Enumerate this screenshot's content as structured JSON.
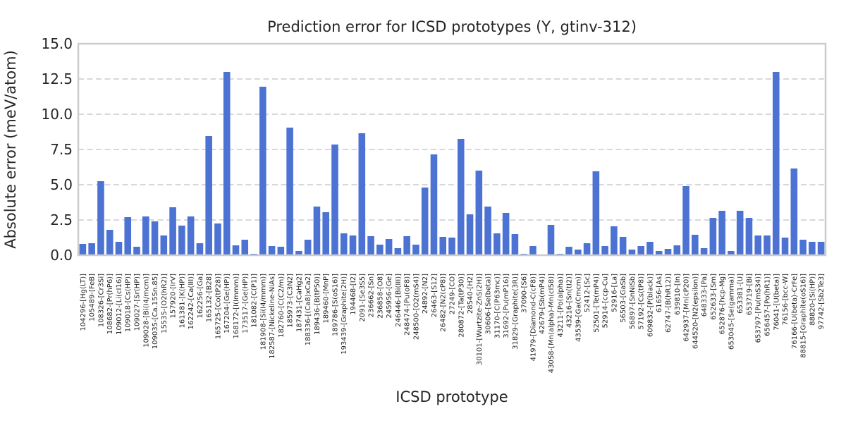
{
  "chart_data": {
    "type": "bar",
    "title": "Prediction error for ICSD prototypes (Y, gtinv-312)",
    "xlabel": "ICSD prototype",
    "ylabel": "Absolute error (meV/atom)",
    "ylim": [
      0,
      15
    ],
    "yticks": [
      "0.0",
      "2.5",
      "5.0",
      "7.5",
      "10.0",
      "12.5",
      "15.0"
    ],
    "grid": true,
    "bar_color": "#4c72d4",
    "categories": [
      "104296-[Hg(LT)]",
      "105489-[FeB]",
      "108326-[Cr3Si]",
      "108682-[Pr(hP6)]",
      "109012-[Li(cI16)]",
      "109018-[Cs(HP)]",
      "109027-[Sr(HP)]",
      "109028-[Bi(I4/mcm)]",
      "109035-[Ca.15Sn.85]",
      "15535-[O2(hR2)]",
      "157920-[IrV]",
      "161381-[K(HP)]",
      "162242-[Ca(III)]",
      "162256-[Ga]",
      "165132-[B28]",
      "165725-[Co(tP28)]",
      "167204-[Ge(HP)]",
      "168172-[I(Immm)]",
      "173517-[Ge(HP)]",
      "181082-[C(P1)]",
      "181908-[Si(I4/mmm)]",
      "182587-[Nickeline-NiAs]",
      "182760-[C(C2/m)]",
      "185973-[C3N2]",
      "187431-[CaHg2]",
      "188336-[(Ca8)xCa2]",
      "189436-[B(tP50)]",
      "189460-[MnP]",
      "189786-[S(oS16)]",
      "193439-[Graphite(2H)]",
      "194468-[I2]",
      "2091-[Se3S5]",
      "236662-[Sn]",
      "236858-[O8]",
      "245956-[Ge]",
      "246446-[Bi(III)]",
      "248474-[Pu(oF8)]",
      "248500-[O2(mS4)]",
      "24892-[N2]",
      "26463-[S12]",
      "26482-[N2(cP8)]",
      "27249-[CO]",
      "280872-[Ta(tP30)]",
      "28540-[H2]",
      "30101-[Wurtzite-ZnS(2H)]",
      "30606-[Se(beta)]",
      "31170-[C(P63mc)]",
      "31692-[Pu(mP16)]",
      "31829-[Graphite(3R)]",
      "37090-[S6]",
      "41979-[Diamond-C(cF8)]",
      "42679-[Sb(mP4)]",
      "43058-[Mn(alpha)-Mn(cI58)]",
      "43211-[Po(alpha)]",
      "43216-[Sn(tI2)]",
      "43539-[Ga(Cmcm)]",
      "52412-[Sc]",
      "52501-[Te(mP4)]",
      "52914-[ccp-Cu]",
      "52916-[La]",
      "56503-[GaSb]",
      "56897-[SnNiSb]",
      "57192-[Cs(tP8)]",
      "609832-[P(black)]",
      "61656-[As]",
      "62747-[B(hR12)]",
      "639810-[In]",
      "642937-[Mn(cP20)]",
      "644520-[N2(epsilon)]",
      "648333-[Pa]",
      "652633-[Sm]",
      "652876-[hcp-Mg]",
      "653045-[Se(gamma)]",
      "653381-[U]",
      "653719-[Bi]",
      "653797-[Pu(mS34)]",
      "656457-[Po(hR1)]",
      "76041-[U(beta)]",
      "76156-[bcc-W]",
      "76166-[U(beta)-CrFe]",
      "88815-[Graphite(oS16)]",
      "88820-[Si(HP)]",
      "97742-[Sb2Te3]"
    ],
    "values": [
      0.8,
      0.85,
      5.25,
      1.8,
      0.95,
      2.7,
      0.6,
      2.75,
      2.4,
      1.4,
      3.4,
      2.1,
      2.75,
      0.85,
      8.45,
      2.25,
      13.0,
      0.7,
      1.1,
      0.1,
      11.95,
      0.65,
      0.6,
      9.05,
      0.3,
      1.1,
      3.45,
      3.05,
      7.85,
      1.55,
      1.4,
      8.65,
      1.35,
      0.75,
      1.15,
      0.5,
      1.35,
      0.75,
      4.8,
      7.15,
      1.3,
      1.25,
      8.25,
      2.9,
      6.0,
      3.45,
      1.55,
      3.0,
      1.5,
      0.1,
      0.65,
      0.05,
      2.15,
      0.1,
      0.6,
      0.4,
      0.85,
      5.95,
      0.65,
      2.05,
      1.3,
      0.4,
      0.65,
      0.95,
      0.3,
      0.45,
      0.7,
      4.9,
      1.45,
      0.5,
      2.65,
      3.15,
      0.3,
      3.15,
      2.65,
      1.4,
      1.4,
      13.0,
      1.25,
      6.15,
      1.1,
      0.95,
      0.95
    ]
  }
}
